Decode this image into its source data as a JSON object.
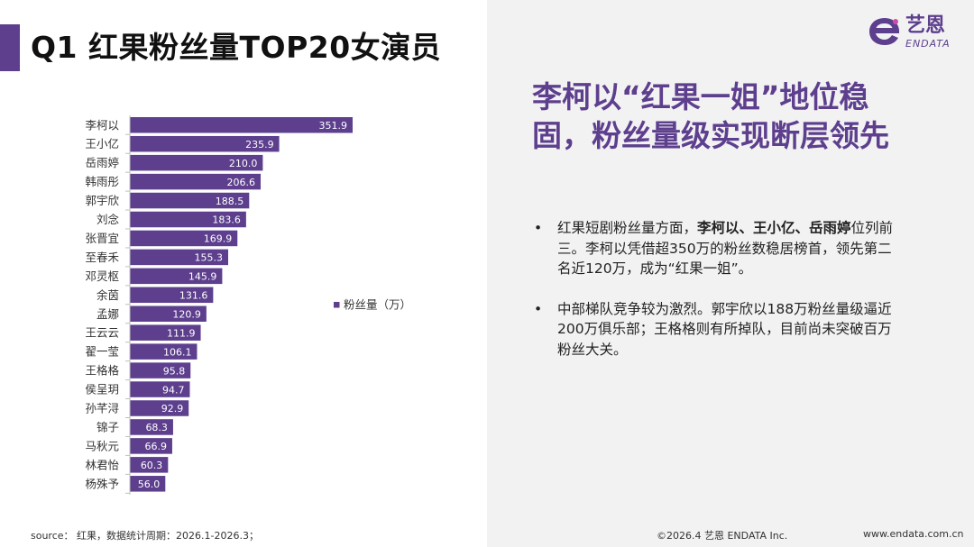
{
  "header": {
    "title": "Q1 红果粉丝量TOP20女演员"
  },
  "logo": {
    "name_cn": "艺恩",
    "name_en": "ENDATA",
    "icon": "endata-logo-icon"
  },
  "chart_data": {
    "type": "bar",
    "orientation": "horizontal",
    "title": "",
    "categories": [
      "李柯以",
      "王小亿",
      "岳雨婷",
      "韩雨彤",
      "郭宇欣",
      "刘念",
      "张晋宜",
      "至春禾",
      "邓灵枢",
      "余茵",
      "孟娜",
      "王云云",
      "翟一莹",
      "王格格",
      "侯呈玥",
      "孙芊浔",
      "锦子",
      "马秋元",
      "林君怡",
      "杨殊予"
    ],
    "values": [
      351.9,
      235.9,
      210.0,
      206.6,
      188.5,
      183.6,
      169.9,
      155.3,
      145.9,
      131.6,
      120.9,
      111.9,
      106.1,
      95.8,
      94.7,
      92.9,
      68.3,
      66.9,
      60.3,
      56.0
    ],
    "value_labels": [
      "351.9",
      "235.9",
      "210.0",
      "206.6",
      "188.5",
      "183.6",
      "169.9",
      "155.3",
      "145.9",
      "131.6",
      "120.9",
      "111.9",
      "106.1",
      "95.8",
      "94.7",
      "92.9",
      "68.3",
      "66.9",
      "60.3",
      "56.0"
    ],
    "legend": [
      "粉丝量（万）"
    ],
    "legend_position": "right",
    "bar_color": "#5d3f8e",
    "xlim": [
      0,
      351.9
    ]
  },
  "summary": {
    "headline": "李柯以“红果一姐”地位稳固，粉丝量级实现断层领先",
    "bullet_symbol": "•",
    "bullets": [
      {
        "parts": [
          {
            "text": "红果短剧粉丝量方面，",
            "bold": false
          },
          {
            "text": "李柯以、王小亿、岳雨婷",
            "bold": true
          },
          {
            "text": "位列前三。李柯以凭借超350万的粉丝数稳居榜首，领先第二名近120万，成为“红果一姐”。",
            "bold": false
          }
        ]
      },
      {
        "parts": [
          {
            "text": "中部梯队竞争较为激烈。郭宇欣以188万粉丝量级逼近200万俱乐部；王格格则有所掉队，目前尚未突破百万粉丝大关。",
            "bold": false
          }
        ]
      }
    ]
  },
  "footer": {
    "source": "source： 红果，数据统计周期：2026.1-2026.3；",
    "copyright": "©2026.4  艺恩 ENDATA Inc.",
    "website": "www.endata.com.cn"
  },
  "colors": {
    "accent": "#5d3f8e",
    "right_panel_bg": "#f2f2f2"
  }
}
